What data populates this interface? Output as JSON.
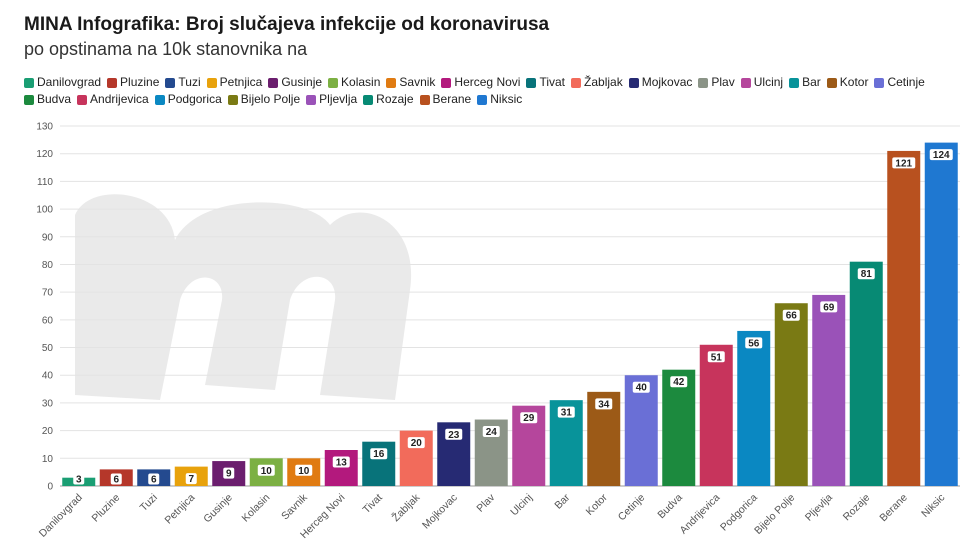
{
  "header": {
    "title": "MINA Infografika: Broj slučajeva infekcije od koronavirusa",
    "subtitle": "po opstinama na 10k stanovnika na"
  },
  "chart_data": {
    "type": "bar",
    "title": "MINA Infografika: Broj slučajeva infekcije od koronavirusa",
    "subtitle": "po opstinama na 10k stanovnika na",
    "xlabel": "",
    "ylabel": "",
    "ylim": [
      0,
      130
    ],
    "yticks": [
      0,
      10,
      20,
      30,
      40,
      50,
      60,
      70,
      80,
      90,
      100,
      110,
      120,
      130
    ],
    "grid": true,
    "legend_position": "top",
    "categories": [
      "Danilovgrad",
      "Pluzine",
      "Tuzi",
      "Petnjica",
      "Gusinje",
      "Kolasin",
      "Savnik",
      "Herceg Novi",
      "Tivat",
      "Žabljak",
      "Mojkovac",
      "Plav",
      "Ulcinj",
      "Bar",
      "Kotor",
      "Cetinje",
      "Budva",
      "Andrijevica",
      "Podgorica",
      "Bijelo Polje",
      "Pljevlja",
      "Rozaje",
      "Berane",
      "Niksic"
    ],
    "values": [
      3,
      6,
      6,
      7,
      9,
      10,
      10,
      13,
      16,
      20,
      23,
      24,
      29,
      31,
      34,
      40,
      42,
      51,
      56,
      66,
      69,
      81,
      121,
      124
    ],
    "colors": [
      "#1a9e73",
      "#b5372a",
      "#244a8f",
      "#e8a20c",
      "#6b1e6e",
      "#7cb043",
      "#e07b12",
      "#b3197d",
      "#08737a",
      "#f26b5b",
      "#262a73",
      "#8b9487",
      "#b5469c",
      "#08939a",
      "#9c5a17",
      "#6a6fd6",
      "#1c8a3e",
      "#c7345c",
      "#0a88c2",
      "#7a7a14",
      "#9a52b8",
      "#078a74",
      "#b8511f",
      "#1f78d1"
    ]
  }
}
